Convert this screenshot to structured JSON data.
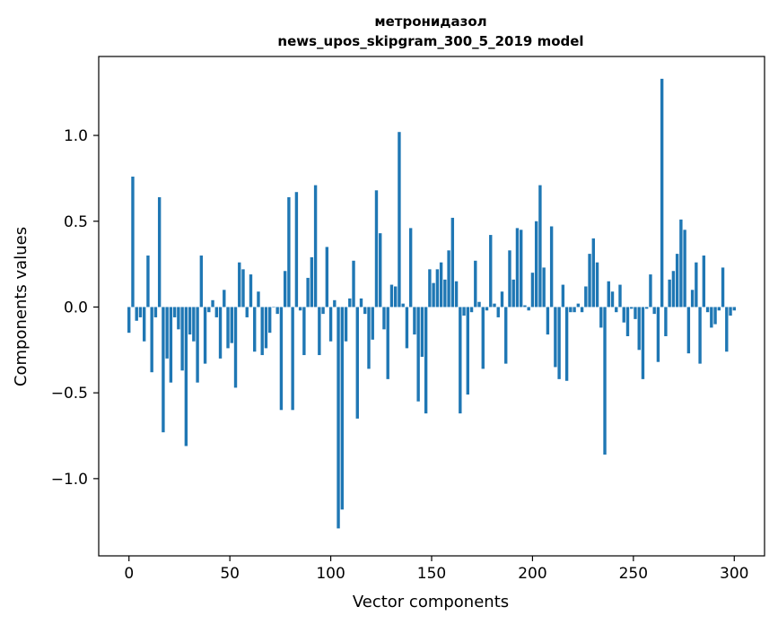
{
  "chart_data": {
    "type": "bar",
    "title": "метронидазол",
    "subtitle": "news_upos_skipgram_300_5_2019 model",
    "xlabel": "Vector components",
    "ylabel": "Components values",
    "xlim": [
      -15,
      315
    ],
    "ylim": [
      -1.45,
      1.46
    ],
    "xticks": [
      0,
      50,
      100,
      150,
      200,
      250,
      300
    ],
    "yticks": [
      -1.0,
      -0.5,
      0.0,
      0.5,
      1.0
    ],
    "xtick_labels": [
      "0",
      "50",
      "100",
      "150",
      "200",
      "250",
      "300"
    ],
    "ytick_labels": [
      "−1.0",
      "−0.5",
      "0.0",
      "0.5",
      "1.0"
    ],
    "bar_color": "#1f77b4",
    "grid": false,
    "series": [
      {
        "values": [
          -0.15,
          0.76,
          -0.08,
          -0.06,
          -0.2,
          0.3,
          -0.38,
          -0.06,
          0.64,
          -0.73,
          -0.3,
          -0.44,
          -0.06,
          -0.13,
          -0.37,
          -0.81,
          -0.16,
          -0.2,
          -0.44,
          0.3,
          -0.33,
          -0.03,
          0.04,
          -0.06,
          -0.3,
          0.1,
          -0.24,
          -0.21,
          -0.47,
          0.26,
          0.22,
          -0.06,
          0.19,
          -0.26,
          0.09,
          -0.28,
          -0.24,
          -0.15,
          0.0,
          -0.04,
          -0.6,
          0.21,
          0.64,
          -0.6,
          0.67,
          -0.02,
          -0.28,
          0.17,
          0.29,
          0.71,
          -0.28,
          -0.04,
          0.35,
          -0.2,
          0.04,
          -1.29,
          -1.18,
          -0.2,
          0.05,
          0.27,
          -0.65,
          0.05,
          -0.04,
          -0.36,
          -0.19,
          0.68,
          0.43,
          -0.13,
          -0.42,
          0.13,
          0.12,
          1.02,
          0.02,
          -0.24,
          0.46,
          -0.16,
          -0.55,
          -0.29,
          -0.62,
          0.22,
          0.14,
          0.22,
          0.26,
          0.16,
          0.33,
          0.52,
          0.15,
          -0.62,
          -0.05,
          -0.51,
          -0.03,
          0.27,
          0.03,
          -0.36,
          -0.02,
          0.42,
          0.02,
          -0.06,
          0.09,
          -0.33,
          0.33,
          0.16,
          0.46,
          0.45,
          0.01,
          -0.02,
          0.2,
          0.5,
          0.71,
          0.23,
          -0.16,
          0.47,
          -0.35,
          -0.42,
          0.13,
          -0.43,
          -0.03,
          -0.03,
          0.02,
          -0.03,
          0.12,
          0.31,
          0.4,
          0.26,
          -0.12,
          -0.86,
          0.15,
          0.09,
          -0.03,
          0.13,
          -0.09,
          -0.17,
          -0.01,
          -0.07,
          -0.25,
          -0.42,
          -0.01,
          0.19,
          -0.04,
          -0.32,
          1.33,
          -0.17,
          0.16,
          0.21,
          0.31,
          0.51,
          0.45,
          -0.27,
          0.1,
          0.26,
          -0.33,
          0.3,
          -0.03,
          -0.12,
          -0.1,
          -0.02,
          0.23,
          -0.26,
          -0.05,
          -0.02
        ]
      }
    ]
  }
}
